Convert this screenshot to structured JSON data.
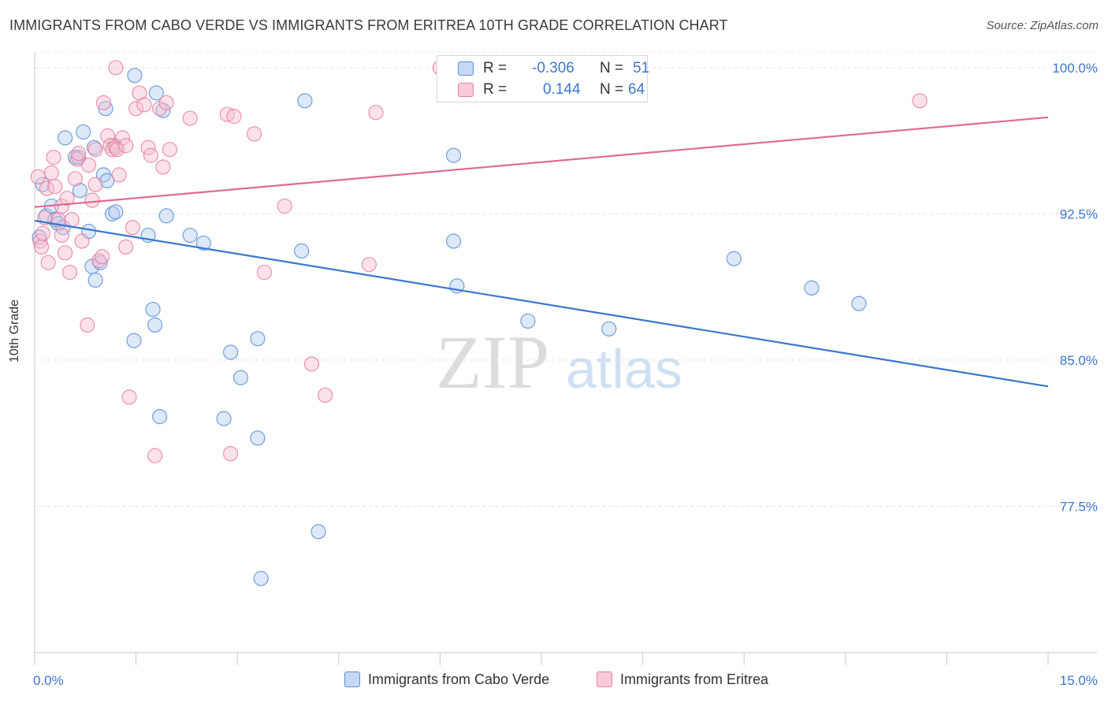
{
  "title": "IMMIGRANTS FROM CABO VERDE VS IMMIGRANTS FROM ERITREA 10TH GRADE CORRELATION CHART",
  "source": "Source: ZipAtlas.com",
  "watermark": {
    "zip": "ZIP",
    "atlas": "atlas"
  },
  "legend": {
    "rows": [
      {
        "r_label": "R =",
        "r_value": "-0.306",
        "n_label": "N =",
        "n_value": "51",
        "color": "#5b8fd6",
        "fill": "#c5d9f5"
      },
      {
        "r_label": "R =",
        "r_value": "0.144",
        "n_label": "N =",
        "n_value": "64",
        "color": "#e880a0",
        "fill": "#f9cad8"
      }
    ]
  },
  "colors": {
    "blue": "#3b76d0",
    "pink": "#e06a92",
    "tick_text": "#3b76d0",
    "grid": "#e2e2e2"
  },
  "chart_data": {
    "type": "scatter",
    "title": "IMMIGRANTS FROM CABO VERDE VS IMMIGRANTS FROM ERITREA 10TH GRADE CORRELATION CHART",
    "xlabel": "",
    "ylabel": "10th Grade",
    "xlim": [
      0,
      15
    ],
    "ylim": [
      70.0,
      100.8
    ],
    "x_tick_labels": [
      "0.0%",
      "15.0%"
    ],
    "y_ticks": [
      77.5,
      85.0,
      92.5,
      100.0
    ],
    "y_tick_labels": [
      "77.5%",
      "85.0%",
      "92.5%",
      "100.0%"
    ],
    "grid": true,
    "legend_position": "bottom",
    "series": [
      {
        "name": "Immigrants from Cabo Verde",
        "color": "#5b8fd6",
        "trend": {
          "x": [
            0,
            15
          ],
          "y": [
            92.15,
            83.65
          ]
        },
        "points": [
          [
            0.07,
            91.3
          ],
          [
            0.12,
            94.0
          ],
          [
            0.17,
            92.4
          ],
          [
            0.25,
            92.9
          ],
          [
            0.3,
            92.2
          ],
          [
            0.35,
            92.0
          ],
          [
            0.42,
            91.8
          ],
          [
            0.45,
            96.4
          ],
          [
            0.6,
            95.4
          ],
          [
            0.65,
            95.4
          ],
          [
            0.67,
            93.7
          ],
          [
            0.72,
            96.7
          ],
          [
            0.8,
            91.6
          ],
          [
            0.85,
            89.8
          ],
          [
            0.9,
            89.1
          ],
          [
            0.88,
            95.9
          ],
          [
            0.97,
            90.0
          ],
          [
            1.02,
            94.5
          ],
          [
            1.07,
            94.2
          ],
          [
            1.15,
            92.5
          ],
          [
            1.18,
            96.0
          ],
          [
            1.48,
            99.6
          ],
          [
            1.47,
            86.0
          ],
          [
            1.68,
            91.4
          ],
          [
            1.75,
            87.6
          ],
          [
            1.78,
            86.8
          ],
          [
            1.85,
            82.1
          ],
          [
            1.9,
            97.8
          ],
          [
            1.95,
            92.4
          ],
          [
            2.3,
            91.4
          ],
          [
            2.5,
            91.0
          ],
          [
            2.8,
            82.0
          ],
          [
            2.9,
            85.4
          ],
          [
            3.05,
            84.1
          ],
          [
            3.3,
            81.0
          ],
          [
            3.3,
            86.1
          ],
          [
            3.35,
            73.8
          ],
          [
            3.95,
            90.6
          ],
          [
            4.0,
            98.3
          ],
          [
            4.2,
            76.2
          ],
          [
            6.2,
            95.5
          ],
          [
            6.2,
            91.1
          ],
          [
            6.25,
            88.8
          ],
          [
            7.3,
            87.0
          ],
          [
            8.5,
            86.6
          ],
          [
            10.35,
            90.2
          ],
          [
            11.5,
            88.7
          ],
          [
            12.2,
            87.9
          ],
          [
            1.8,
            98.7
          ],
          [
            1.2,
            92.6
          ],
          [
            1.05,
            97.9
          ]
        ]
      },
      {
        "name": "Immigrants from Eritrea",
        "color": "#e880a0",
        "trend": {
          "x": [
            0,
            15
          ],
          "y": [
            92.85,
            97.45
          ]
        },
        "points": [
          [
            0.05,
            94.4
          ],
          [
            0.08,
            91.1
          ],
          [
            0.1,
            90.8
          ],
          [
            0.12,
            91.5
          ],
          [
            0.18,
            93.8
          ],
          [
            0.2,
            90.0
          ],
          [
            0.25,
            94.6
          ],
          [
            0.28,
            95.4
          ],
          [
            0.3,
            93.9
          ],
          [
            0.35,
            92.2
          ],
          [
            0.4,
            92.9
          ],
          [
            0.45,
            90.5
          ],
          [
            0.48,
            93.3
          ],
          [
            0.52,
            89.5
          ],
          [
            0.55,
            92.2
          ],
          [
            0.6,
            94.3
          ],
          [
            0.63,
            95.3
          ],
          [
            0.7,
            91.1
          ],
          [
            0.78,
            86.8
          ],
          [
            0.8,
            95.0
          ],
          [
            0.85,
            93.2
          ],
          [
            0.9,
            95.8
          ],
          [
            0.95,
            90.1
          ],
          [
            1.0,
            90.3
          ],
          [
            1.02,
            98.2
          ],
          [
            1.08,
            96.5
          ],
          [
            1.12,
            96.0
          ],
          [
            1.15,
            95.8
          ],
          [
            1.2,
            95.9
          ],
          [
            1.25,
            94.5
          ],
          [
            1.3,
            96.4
          ],
          [
            1.35,
            90.8
          ],
          [
            1.4,
            83.1
          ],
          [
            1.45,
            91.8
          ],
          [
            1.5,
            97.9
          ],
          [
            1.55,
            98.7
          ],
          [
            1.62,
            98.1
          ],
          [
            1.68,
            95.9
          ],
          [
            1.72,
            95.5
          ],
          [
            1.78,
            80.1
          ],
          [
            1.85,
            97.9
          ],
          [
            1.9,
            94.9
          ],
          [
            2.0,
            95.8
          ],
          [
            2.3,
            97.4
          ],
          [
            2.85,
            97.6
          ],
          [
            2.9,
            80.2
          ],
          [
            2.95,
            97.5
          ],
          [
            3.25,
            96.6
          ],
          [
            3.4,
            89.5
          ],
          [
            3.7,
            92.9
          ],
          [
            4.1,
            84.8
          ],
          [
            4.3,
            83.2
          ],
          [
            4.95,
            89.9
          ],
          [
            5.05,
            97.7
          ],
          [
            6.0,
            100.0
          ],
          [
            13.1,
            98.3
          ],
          [
            1.2,
            100.0
          ],
          [
            1.22,
            95.8
          ],
          [
            0.65,
            95.6
          ],
          [
            0.9,
            94.0
          ],
          [
            0.15,
            92.3
          ],
          [
            1.35,
            96.0
          ],
          [
            1.95,
            98.2
          ],
          [
            0.4,
            91.4
          ]
        ]
      }
    ]
  }
}
